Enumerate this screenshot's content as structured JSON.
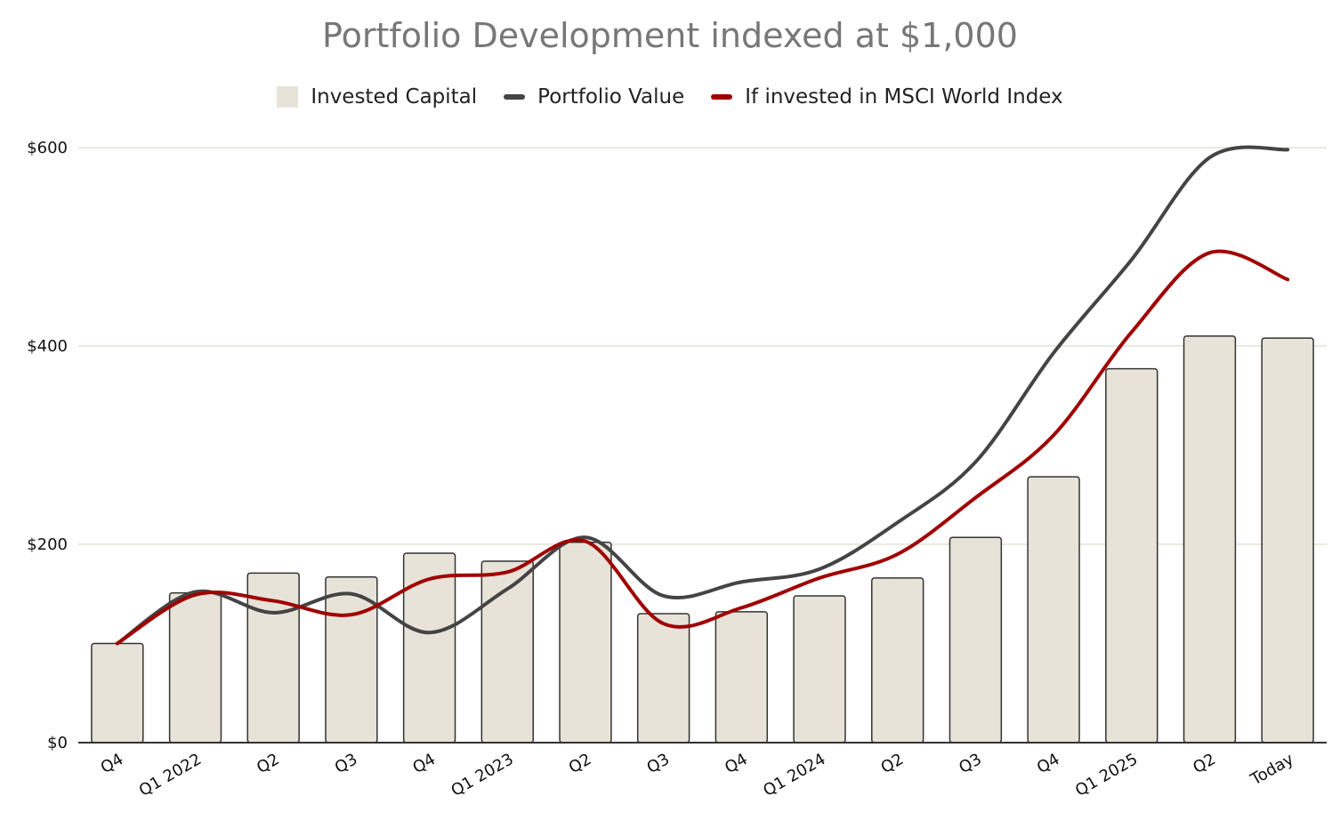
{
  "chart_data": {
    "type": "bar",
    "title": "Portfolio Development indexed at $1,000",
    "xlabel": "",
    "ylabel": "",
    "ylim": [
      0,
      600
    ],
    "yticks": [
      0,
      200,
      400,
      600
    ],
    "ytick_labels": [
      "$0",
      "$200",
      "$400",
      "$600"
    ],
    "categories": [
      "Q4",
      "Q1 2022",
      "Q2",
      "Q3",
      "Q4",
      "Q1 2023",
      "Q2",
      "Q3",
      "Q4",
      "Q1 2024",
      "Q2",
      "Q3",
      "Q4",
      "Q1 2025",
      "Q2",
      "Today"
    ],
    "grid": true,
    "legend_position": "top-center",
    "series": [
      {
        "name": "Invested Capital",
        "kind": "bar",
        "color": "#e8e3d8",
        "values": [
          100,
          151,
          171,
          167,
          191,
          183,
          202,
          130,
          132,
          148,
          166,
          207,
          268,
          377,
          410,
          408
        ]
      },
      {
        "name": "Portfolio Value",
        "kind": "line",
        "color": "#444444",
        "values": [
          100,
          152,
          131,
          150,
          111,
          155,
          207,
          148,
          162,
          175,
          222,
          283,
          393,
          487,
          590,
          598
        ]
      },
      {
        "name": "If invested in MSCI World Index",
        "kind": "line",
        "color": "#a00000",
        "values": [
          100,
          149,
          143,
          129,
          165,
          172,
          203,
          120,
          136,
          166,
          190,
          247,
          310,
          414,
          494,
          467
        ]
      }
    ]
  },
  "legend": {
    "invested": "Invested Capital",
    "portfolio": "Portfolio Value",
    "msci": "If invested in MSCI World Index"
  }
}
